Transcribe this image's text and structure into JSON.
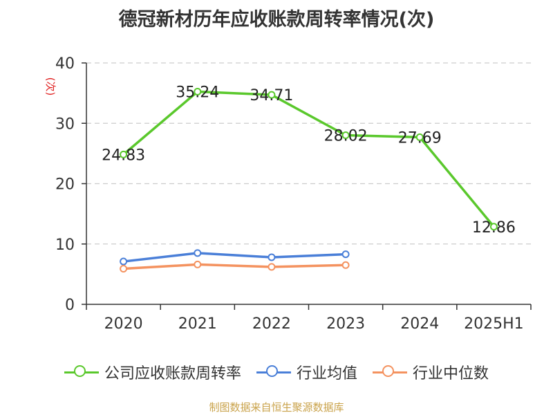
{
  "title": "德冠新材历年应收账款周转率情况(次)",
  "source": "制图数据来自恒生聚源数据库",
  "chart_data": {
    "type": "line",
    "title": "德冠新材历年应收账款周转率情况(次)",
    "ylabel": "(次)",
    "xlabel": "",
    "categories": [
      "2020",
      "2021",
      "2022",
      "2023",
      "2024",
      "2025H1"
    ],
    "ylim": [
      0,
      40
    ],
    "yticks": [
      0,
      10,
      20,
      30,
      40
    ],
    "grid": true,
    "legend_position": "bottom",
    "series": [
      {
        "name": "公司应收账款周转率",
        "color": "#5ac82c",
        "values": [
          24.83,
          35.24,
          34.71,
          28.02,
          27.69,
          12.86
        ],
        "labels": [
          "24.83",
          "35.24",
          "34.71",
          "28.02",
          "27.69",
          "12.86"
        ]
      },
      {
        "name": "行业均值",
        "color": "#4a7fd8",
        "values": [
          7.1,
          8.5,
          7.8,
          8.3,
          null,
          null
        ]
      },
      {
        "name": "行业中位数",
        "color": "#f4925f",
        "values": [
          5.9,
          6.6,
          6.2,
          6.5,
          null,
          null
        ]
      }
    ]
  }
}
